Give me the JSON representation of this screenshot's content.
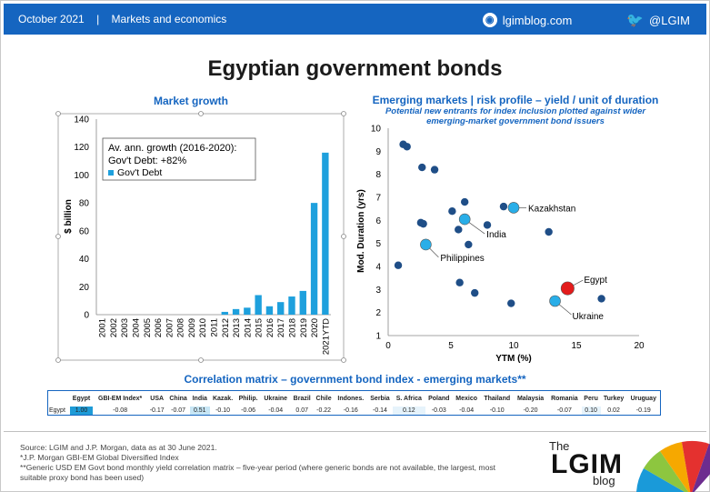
{
  "header": {
    "date": "October 2021",
    "separator": "|",
    "section": "Markets and economics",
    "site": "lgimblog.com",
    "twitter": "@LGIM"
  },
  "title": "Egyptian government bonds",
  "chart_data": [
    {
      "type": "bar",
      "title": "Market growth",
      "ylabel": "$ billion",
      "xlabel": "",
      "ylim": [
        0,
        140
      ],
      "yticks": [
        0,
        20,
        40,
        60,
        80,
        100,
        120,
        140
      ],
      "grid": false,
      "categories": [
        "2001",
        "2002",
        "2003",
        "2004",
        "2005",
        "2006",
        "2007",
        "2008",
        "2009",
        "2010",
        "2011",
        "2012",
        "2013",
        "2014",
        "2015",
        "2016",
        "2017",
        "2018",
        "2019",
        "2020",
        "2021YTD"
      ],
      "series": [
        {
          "name": "Gov't Debt",
          "values": [
            0,
            0,
            0,
            0,
            0,
            0,
            0,
            0,
            0,
            0,
            0,
            2,
            4,
            5,
            14,
            6,
            9,
            13,
            17,
            80,
            116
          ]
        }
      ],
      "annotation": [
        "Av. ann. growth (2016-2020):",
        "Gov't Debt: +82%"
      ],
      "color": "#1ea0dd"
    },
    {
      "type": "scatter",
      "title": "Emerging markets | risk profile – yield / unit of duration",
      "subtitle": [
        "Potential new entrants for index inclusion plotted against wider",
        "emerging-market government bond issuers"
      ],
      "xlabel": "YTM (%)",
      "ylabel": "Mod. Duration (yrs)",
      "xlim": [
        0,
        20
      ],
      "ylim": [
        1,
        10
      ],
      "xticks": [
        0,
        5,
        10,
        15,
        20
      ],
      "yticks": [
        1,
        2,
        3,
        4,
        5,
        6,
        7,
        8,
        9,
        10
      ],
      "grid": false,
      "points": [
        {
          "x": 1.2,
          "y": 9.3
        },
        {
          "x": 1.5,
          "y": 9.2
        },
        {
          "x": 2.7,
          "y": 8.3
        },
        {
          "x": 3.7,
          "y": 8.2
        },
        {
          "x": 6.1,
          "y": 6.8
        },
        {
          "x": 5.1,
          "y": 6.4
        },
        {
          "x": 2.6,
          "y": 5.9
        },
        {
          "x": 2.8,
          "y": 5.85
        },
        {
          "x": 5.6,
          "y": 5.6
        },
        {
          "x": 7.9,
          "y": 5.8
        },
        {
          "x": 6.4,
          "y": 4.95
        },
        {
          "x": 9.2,
          "y": 6.6
        },
        {
          "x": 12.8,
          "y": 5.5
        },
        {
          "x": 0.8,
          "y": 4.05
        },
        {
          "x": 5.7,
          "y": 3.3
        },
        {
          "x": 6.9,
          "y": 2.85
        },
        {
          "x": 9.8,
          "y": 2.4
        },
        {
          "x": 17.0,
          "y": 2.6
        }
      ],
      "highlights": [
        {
          "label": "Kazakhstan",
          "x": 10.0,
          "y": 6.55,
          "color": "#29aee8"
        },
        {
          "label": "India",
          "x": 6.1,
          "y": 6.05,
          "color": "#29aee8"
        },
        {
          "label": "Philippines",
          "x": 3.0,
          "y": 4.95,
          "color": "#29aee8"
        },
        {
          "label": "Egypt",
          "x": 14.3,
          "y": 3.05,
          "color": "#e31b1b"
        },
        {
          "label": "Ukraine",
          "x": 13.3,
          "y": 2.5,
          "color": "#29aee8"
        }
      ],
      "dot_color": "#1f4e87"
    }
  ],
  "correlation": {
    "title": "Correlation matrix – government bond index - emerging markets**",
    "columns": [
      "Egypt",
      "GBI-EM Index*",
      "USA",
      "China",
      "India",
      "Kazak.",
      "Philip.",
      "Ukraine",
      "Brazil",
      "Chile",
      "Indones.",
      "Serbia",
      "S. Africa",
      "Poland",
      "Mexico",
      "Thailand",
      "Malaysia",
      "Romania",
      "Peru",
      "Turkey",
      "Uruguay"
    ],
    "row_label": "Egypt",
    "values": [
      "1.00",
      "-0.08",
      "-0.17",
      "-0.07",
      "0.51",
      "-0.10",
      "-0.06",
      "-0.04",
      "0.07",
      "-0.22",
      "-0.16",
      "-0.14",
      "0.12",
      "-0.03",
      "-0.04",
      "-0.10",
      "-0.20",
      "-0.07",
      "0.10",
      "0.02",
      "-0.19"
    ]
  },
  "footer": {
    "lines": [
      "Source: LGIM and J.P. Morgan, data as at 30 June 2021.",
      "*J.P. Morgan GBI-EM Global Diversified Index",
      "**Generic USD EM  Govt bond monthly yield correlation matrix – five-year period (where generic bonds are not available, the largest, most",
      "suitable proxy bond has been used)"
    ]
  },
  "logo": {
    "the": "The",
    "name": "LGIM",
    "blog": "blog"
  }
}
